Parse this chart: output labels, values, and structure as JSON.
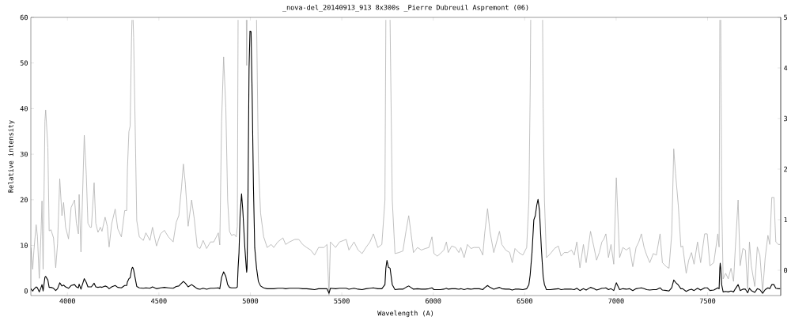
{
  "chart_data": {
    "type": "line",
    "title": "_nova-del_20140913_913 8x300s _Pierre Dubreuil Aspremont (06)",
    "xlabel": "Wavelength (A)",
    "ylabel": "Relative intensity",
    "xlim": [
      3800,
      7900
    ],
    "xticks": [
      4000,
      4500,
      5000,
      5500,
      6000,
      6500,
      7000,
      7500
    ],
    "ylim": [
      -1,
      60
    ],
    "yticks": [
      0,
      10,
      20,
      30,
      40,
      50,
      60
    ],
    "y2lim": [
      -0.5,
      5
    ],
    "y2ticks": [
      0,
      1,
      2,
      3,
      4,
      5
    ],
    "x": [
      3800,
      3810,
      3817,
      3829,
      3836,
      3846,
      3856,
      3861,
      3867,
      3877,
      3881,
      3893,
      3900,
      3910,
      3924,
      3936,
      3946,
      3958,
      3970,
      3979,
      3990,
      4006,
      4020,
      4039,
      4049,
      4060,
      4064,
      4074,
      4092,
      4103,
      4112,
      4124,
      4131,
      4146,
      4155,
      4167,
      4180,
      4189,
      4206,
      4218,
      4228,
      4242,
      4261,
      4275,
      4295,
      4313,
      4324,
      4328,
      4336,
      4343,
      4350,
      4353,
      4356,
      4359,
      4362,
      4372,
      4379,
      4393,
      4415,
      4429,
      4451,
      4465,
      4487,
      4509,
      4530,
      4552,
      4578,
      4595,
      4609,
      4624,
      4634,
      4645,
      4660,
      4679,
      4693,
      4710,
      4725,
      4742,
      4761,
      4782,
      4800,
      4825,
      4833,
      4843,
      4854,
      4866,
      4876,
      4886,
      4897,
      4912,
      4923,
      4929,
      4933,
      4938,
      4944,
      4952,
      4959,
      4970,
      4978,
      4980,
      4982,
      4987,
      4993,
      4998,
      5004,
      5010,
      5017,
      5024,
      5034,
      5044,
      5056,
      5073,
      5092,
      5114,
      5128,
      5150,
      5178,
      5193,
      5214,
      5243,
      5265,
      5286,
      5308,
      5330,
      5351,
      5373,
      5402,
      5419,
      5430,
      5438,
      5466,
      5488,
      5510,
      5524,
      5539,
      5567,
      5589,
      5611,
      5632,
      5654,
      5673,
      5697,
      5719,
      5736,
      5741,
      5747,
      5755,
      5764,
      5776,
      5791,
      5812,
      5834,
      5851,
      5866,
      5877,
      5892,
      5914,
      5935,
      5957,
      5976,
      5993,
      6004,
      6022,
      6039,
      6058,
      6072,
      6082,
      6101,
      6122,
      6140,
      6151,
      6169,
      6187,
      6206,
      6223,
      6252,
      6271,
      6281,
      6297,
      6310,
      6331,
      6362,
      6375,
      6396,
      6418,
      6432,
      6447,
      6468,
      6490,
      6511,
      6523,
      6530,
      6533,
      6540,
      6550,
      6558,
      6566,
      6573,
      6581,
      6591,
      6598,
      6601,
      6608,
      6619,
      6641,
      6663,
      6684,
      6699,
      6716,
      6735,
      6756,
      6771,
      6785,
      6802,
      6821,
      6836,
      6860,
      6879,
      6893,
      6908,
      6922,
      6932,
      6944,
      6958,
      6972,
      6987,
      7001,
      7019,
      7037,
      7056,
      7073,
      7091,
      7109,
      7124,
      7138,
      7153,
      7167,
      7184,
      7203,
      7220,
      7240,
      7253,
      7275,
      7289,
      7304,
      7315,
      7325,
      7340,
      7354,
      7364,
      7383,
      7397,
      7412,
      7426,
      7445,
      7462,
      7484,
      7498,
      7513,
      7534,
      7556,
      7563,
      7567,
      7569,
      7572,
      7577,
      7585,
      7599,
      7613,
      7628,
      7642,
      7652,
      7667,
      7678,
      7693,
      7707,
      7719,
      7729,
      7739,
      7758,
      7772,
      7786,
      7801,
      7815,
      7830,
      7840,
      7851,
      7863,
      7873,
      7887,
      7897
    ],
    "series": [
      {
        "color": "#b0b0b0",
        "axis": "y2",
        "values": [
          0.45,
          0.02,
          0.4,
          0.9,
          0.67,
          -0.16,
          0.77,
          1.37,
          0.02,
          2.95,
          3.17,
          2.43,
          0.78,
          0.8,
          0.64,
          0.05,
          0.52,
          1.81,
          1.08,
          1.34,
          0.85,
          0.62,
          1.24,
          1.39,
          0.93,
          0.72,
          1.5,
          0.36,
          2.67,
          1.9,
          0.93,
          0.85,
          0.85,
          1.73,
          0.93,
          0.75,
          0.85,
          0.77,
          1.05,
          0.87,
          0.46,
          0.92,
          1.21,
          0.82,
          0.66,
          1.18,
          1.18,
          2.0,
          2.74,
          2.85,
          4.5,
          4.95,
          null,
          4.95,
          4.6,
          2.5,
          0.98,
          0.66,
          0.59,
          0.74,
          0.59,
          0.85,
          0.48,
          0.72,
          0.79,
          0.66,
          0.56,
          0.95,
          1.08,
          1.65,
          2.1,
          1.7,
          0.87,
          1.39,
          1.03,
          0.46,
          0.43,
          0.59,
          0.43,
          0.56,
          0.56,
          0.74,
          0.5,
          2.95,
          4.22,
          3.21,
          1.39,
          0.77,
          0.69,
          0.71,
          0.66,
          0.87,
          4.95,
          null,
          null,
          null,
          null,
          null,
          4.95,
          4.05,
          4.95,
          null,
          null,
          null,
          null,
          null,
          null,
          null,
          4.95,
          2.12,
          1.13,
          0.66,
          0.45,
          0.51,
          0.45,
          0.56,
          0.64,
          0.51,
          0.56,
          0.61,
          0.61,
          0.51,
          0.45,
          0.4,
          0.3,
          0.45,
          0.45,
          0.51,
          -0.49,
          0.56,
          0.45,
          0.56,
          0.59,
          0.61,
          0.4,
          0.56,
          0.4,
          0.33,
          0.45,
          0.56,
          0.72,
          0.45,
          0.51,
          1.39,
          4.95,
          null,
          null,
          4.95,
          1.39,
          0.33,
          0.35,
          0.38,
          0.77,
          1.08,
          0.77,
          0.35,
          0.45,
          0.4,
          0.43,
          0.45,
          0.66,
          0.33,
          0.28,
          0.33,
          0.4,
          0.56,
          0.35,
          0.48,
          0.45,
          0.35,
          0.45,
          0.25,
          0.51,
          0.43,
          0.45,
          0.45,
          0.3,
          0.72,
          1.22,
          0.77,
          0.35,
          0.77,
          0.51,
          0.4,
          0.35,
          0.15,
          0.43,
          0.35,
          0.3,
          0.45,
          1.39,
          3.5,
          4.95,
          null,
          null,
          null,
          null,
          null,
          null,
          null,
          4.95,
          3.2,
          1.39,
          0.25,
          0.33,
          0.43,
          0.48,
          0.28,
          0.35,
          0.35,
          0.4,
          0.3,
          0.56,
          0.05,
          0.51,
          0.15,
          0.77,
          0.45,
          0.2,
          0.35,
          0.56,
          0.61,
          0.72,
          0.25,
          0.51,
          0.12,
          1.83,
          0.25,
          0.45,
          0.4,
          0.45,
          0.07,
          0.45,
          0.56,
          0.72,
          0.45,
          0.3,
          0.15,
          0.33,
          0.3,
          0.72,
          0.15,
          0.07,
          0.04,
          0.72,
          2.4,
          1.91,
          1.28,
          0.46,
          0.48,
          -0.06,
          0.2,
          0.35,
          0.12,
          0.56,
          0.15,
          0.72,
          0.72,
          0.09,
          0.15,
          0.72,
          0.46,
          4.95,
          null,
          4.95,
          1.39,
          -0.17,
          -0.06,
          -0.17,
          0.04,
          -0.22,
          0.46,
          1.39,
          0.09,
          0.43,
          0.4,
          -0.37,
          0.56,
          0.09,
          -0.32,
          0.46,
          0.3,
          -0.43,
          0.25,
          0.69,
          0.51,
          1.44,
          1.44,
          0.56,
          0.51,
          0.51
        ]
      },
      {
        "color": "#000000",
        "values": [
          0.5,
          0.0,
          0.4,
          0.9,
          0.7,
          -0.2,
          0.8,
          1.4,
          0.0,
          3.0,
          3.2,
          2.4,
          0.8,
          0.8,
          0.6,
          0.1,
          0.5,
          1.8,
          1.1,
          1.3,
          0.9,
          0.6,
          1.2,
          1.4,
          0.9,
          0.7,
          1.5,
          0.4,
          2.7,
          1.9,
          0.9,
          0.9,
          0.9,
          1.7,
          0.9,
          0.8,
          0.9,
          0.8,
          1.1,
          0.9,
          0.5,
          0.9,
          1.2,
          0.8,
          0.7,
          1.2,
          1.2,
          2.0,
          2.7,
          2.9,
          4.5,
          5.0,
          5.2,
          5.0,
          4.6,
          2.5,
          1.0,
          0.7,
          0.6,
          0.7,
          0.6,
          0.9,
          0.5,
          0.7,
          0.8,
          0.7,
          0.6,
          1.0,
          1.1,
          1.7,
          2.1,
          1.7,
          0.9,
          1.4,
          1.0,
          0.5,
          0.4,
          0.6,
          0.4,
          0.6,
          0.6,
          0.7,
          0.5,
          3.0,
          4.2,
          3.2,
          1.4,
          0.8,
          0.7,
          0.7,
          0.7,
          0.9,
          5.0,
          8.4,
          16.5,
          21.3,
          17.6,
          9.5,
          5.0,
          4.1,
          5.0,
          20.0,
          48.9,
          57.0,
          56.9,
          43.0,
          22.9,
          9.5,
          5.0,
          2.1,
          1.1,
          0.7,
          0.5,
          0.5,
          0.5,
          0.6,
          0.6,
          0.5,
          0.6,
          0.6,
          0.6,
          0.5,
          0.5,
          0.4,
          0.3,
          0.5,
          0.5,
          0.5,
          -0.5,
          0.6,
          0.5,
          0.6,
          0.6,
          0.6,
          0.4,
          0.6,
          0.4,
          0.3,
          0.5,
          0.6,
          0.7,
          0.5,
          0.5,
          1.4,
          5.0,
          6.7,
          5.2,
          5.0,
          1.4,
          0.3,
          0.4,
          0.4,
          0.8,
          1.1,
          0.8,
          0.4,
          0.5,
          0.4,
          0.4,
          0.5,
          0.7,
          0.3,
          0.3,
          0.3,
          0.4,
          0.6,
          0.4,
          0.5,
          0.5,
          0.4,
          0.5,
          0.3,
          0.5,
          0.4,
          0.5,
          0.5,
          0.3,
          0.7,
          1.2,
          0.8,
          0.4,
          0.8,
          0.5,
          0.4,
          0.4,
          0.2,
          0.4,
          0.4,
          0.3,
          0.5,
          1.4,
          3.5,
          5.0,
          8.4,
          15.6,
          16.5,
          18.8,
          20.1,
          17.6,
          9.5,
          5.0,
          3.2,
          1.4,
          0.3,
          0.3,
          0.4,
          0.5,
          0.3,
          0.4,
          0.4,
          0.4,
          0.3,
          0.6,
          0.1,
          0.5,
          0.2,
          0.8,
          0.5,
          0.2,
          0.4,
          0.6,
          0.6,
          0.7,
          0.3,
          0.5,
          0.1,
          1.8,
          0.3,
          0.5,
          0.4,
          0.5,
          0.1,
          0.5,
          0.6,
          0.7,
          0.5,
          0.3,
          0.2,
          0.3,
          0.3,
          0.7,
          0.2,
          0.1,
          0.0,
          0.7,
          2.4,
          1.9,
          1.3,
          0.5,
          0.5,
          -0.1,
          0.2,
          0.4,
          0.1,
          0.6,
          0.2,
          0.7,
          0.7,
          0.1,
          0.2,
          0.7,
          0.5,
          5.0,
          6.1,
          5.0,
          1.4,
          -0.2,
          -0.1,
          -0.2,
          0.0,
          -0.2,
          0.5,
          1.4,
          0.1,
          0.4,
          0.4,
          -0.4,
          0.6,
          0.1,
          -0.3,
          0.5,
          0.3,
          -0.5,
          0.3,
          0.7,
          0.5,
          1.4,
          1.4,
          0.6,
          0.5,
          0.5
        ]
      }
    ]
  }
}
